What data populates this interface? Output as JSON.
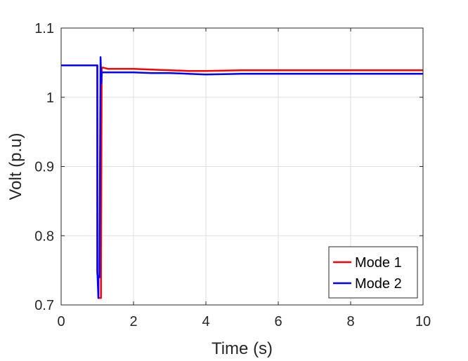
{
  "chart_data": {
    "type": "line",
    "xlabel": "Time (s)",
    "ylabel": "Volt (p.u)",
    "xlim": [
      0,
      10
    ],
    "ylim": [
      0.7,
      1.1
    ],
    "xticks": [
      0,
      2,
      4,
      6,
      8,
      10
    ],
    "yticks": [
      0.7,
      0.8,
      0.9,
      1.0,
      1.1
    ],
    "xtick_labels": [
      "0",
      "2",
      "4",
      "6",
      "8",
      "10"
    ],
    "ytick_labels": [
      "0.7",
      "0.8",
      "0.9",
      "1",
      "1.1"
    ],
    "grid": true,
    "legend_position": "bottom-right",
    "series": [
      {
        "name": "Mode 1",
        "color": "#ff0000",
        "x": [
          0,
          1.0,
          1.0,
          1.03,
          1.03,
          1.05,
          1.1,
          1.1,
          1.12,
          1.15,
          1.3,
          1.5,
          2.0,
          2.5,
          3.0,
          3.5,
          4.0,
          5.0,
          6.0,
          7.0,
          8.0,
          9.0,
          10.0
        ],
        "y": [
          1.046,
          1.046,
          0.745,
          0.74,
          0.71,
          0.71,
          0.71,
          0.74,
          1.042,
          1.043,
          1.041,
          1.041,
          1.041,
          1.04,
          1.039,
          1.038,
          1.038,
          1.039,
          1.039,
          1.039,
          1.039,
          1.039,
          1.039
        ]
      },
      {
        "name": "Mode 2",
        "color": "#0000ff",
        "x": [
          0,
          1.0,
          1.0,
          1.03,
          1.03,
          1.06,
          1.06,
          1.09,
          1.11,
          1.12,
          1.15,
          1.3,
          1.5,
          2.0,
          2.5,
          3.0,
          3.5,
          4.0,
          5.0,
          6.0,
          7.0,
          8.0,
          9.0,
          10.0
        ],
        "y": [
          1.046,
          1.046,
          0.75,
          0.71,
          0.74,
          0.74,
          0.76,
          1.058,
          1.02,
          1.035,
          1.036,
          1.036,
          1.036,
          1.036,
          1.035,
          1.035,
          1.034,
          1.033,
          1.034,
          1.034,
          1.034,
          1.034,
          1.034,
          1.034
        ]
      }
    ]
  }
}
